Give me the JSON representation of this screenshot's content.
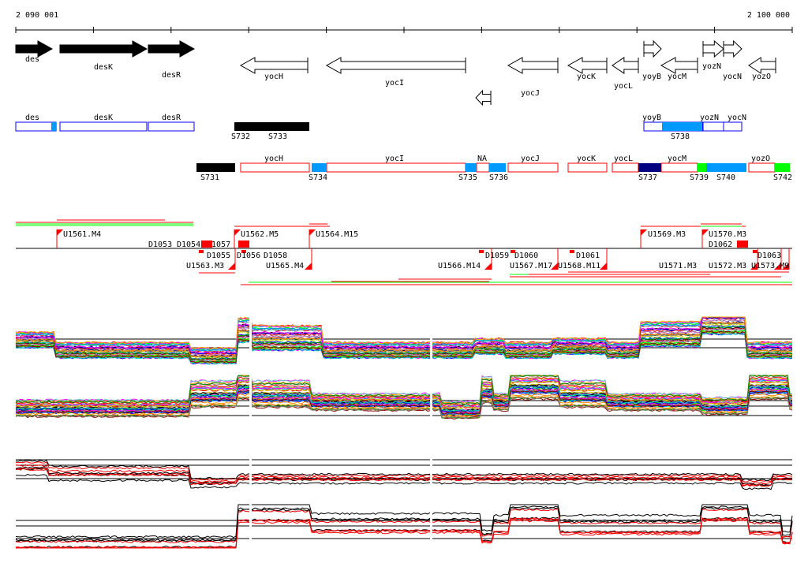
{
  "axis": {
    "start_label": "2 090 001",
    "end_label": "2 100 000"
  },
  "colors": {
    "forward_gene": "#000000",
    "reverse_gene": "#ffffff",
    "operon_box": "#0000ff",
    "transcript_box": "#ff0000",
    "segment_light_blue": "#0099ff",
    "segment_navy": "#000080",
    "segment_green": "#00ff00",
    "segment_black": "#000000",
    "tss_flag": "#ff0000"
  },
  "genes": [
    {
      "name": "des",
      "strand": "+"
    },
    {
      "name": "desK",
      "strand": "+"
    },
    {
      "name": "desR",
      "strand": "+"
    },
    {
      "name": "yocH",
      "strand": "-"
    },
    {
      "name": "yocI",
      "strand": "-"
    },
    {
      "name": "yocJ",
      "strand": "-"
    },
    {
      "name": "yocK",
      "strand": "-"
    },
    {
      "name": "yocL",
      "strand": "-"
    },
    {
      "name": "yoyB",
      "strand": "+"
    },
    {
      "name": "yocM",
      "strand": "-"
    },
    {
      "name": "yozN",
      "strand": "+"
    },
    {
      "name": "yocN",
      "strand": "+"
    },
    {
      "name": "yozO",
      "strand": "-"
    }
  ],
  "forward_segments": {
    "gene_boxes": [
      "des",
      "desK",
      "desR",
      "yoyB",
      "yozN",
      "yocN"
    ],
    "segments": [
      "S732",
      "S733",
      "S738"
    ]
  },
  "reverse_segments": {
    "gene_boxes": [
      "yocH",
      "yocI",
      "NA",
      "yocJ",
      "yocK",
      "yocL",
      "yocM",
      "yozO"
    ],
    "segments": [
      "S731",
      "S734",
      "S735",
      "S736",
      "S737",
      "S739",
      "S740",
      "S742"
    ]
  },
  "tss_labels_upper": [
    "U1561.M4",
    "D1053",
    "D1054",
    "D1057",
    "U1562.M5",
    "U1564.M15",
    "U1569.M3",
    "U1570.M3",
    "D1062"
  ],
  "tss_labels_lower": [
    "D1055",
    "U1563.M3",
    "D1056",
    "D1058",
    "U1565.M4",
    "U1566.M14",
    "D1059",
    "D1060",
    "U1567.M17",
    "U1568.M11",
    "D1061",
    "U1571.M3",
    "U1572.M3",
    "U1573.M9",
    "D1063"
  ],
  "expression_panels": [
    "forward-strand-all-conditions",
    "reverse-strand-all-conditions",
    "forward-strand-selected",
    "reverse-strand-selected"
  ]
}
